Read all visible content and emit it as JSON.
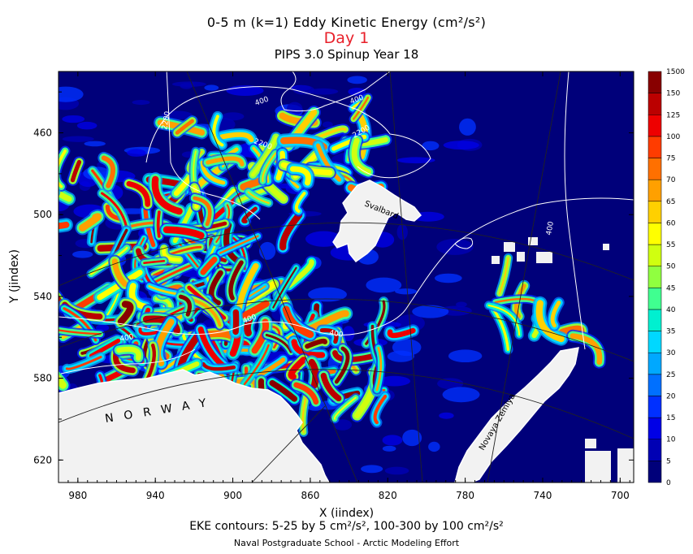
{
  "chart_data": {
    "type": "heatmap",
    "title": "0-5 m (k=1) Eddy Kinetic Energy (cm²/s²)",
    "subtitle": "Day 1",
    "title2": "PIPS 3.0 Spinup Year 18",
    "xlabel": "X (iindex)",
    "ylabel": "Y (jindex)",
    "footer": "EKE contours: 5-25 by 5 cm²/s², 100-300 by 100 cm²/s²",
    "credit": "Naval Postgraduate School - Arctic Modeling Effort",
    "x_ticks": [
      980,
      940,
      900,
      860,
      820,
      780,
      740,
      700
    ],
    "y_ticks": [
      460,
      500,
      540,
      580,
      620
    ],
    "xlim": [
      990,
      693
    ],
    "ylim": [
      430,
      631
    ],
    "colorbar": {
      "labels": [
        "0",
        "5",
        "10",
        "15",
        "20",
        "25",
        "30",
        "35",
        "40",
        "45",
        "50",
        "55",
        "60",
        "65",
        "70",
        "75",
        "100",
        "125",
        "150",
        "1500"
      ],
      "colors": [
        "#00007a",
        "#0000b4",
        "#0000e6",
        "#0030ff",
        "#0070ff",
        "#00a8ff",
        "#00d8ff",
        "#00f0d0",
        "#40ff90",
        "#90ff40",
        "#d0ff10",
        "#ffff00",
        "#ffd000",
        "#ffa000",
        "#ff7000",
        "#ff3c00",
        "#ee0000",
        "#bb0000",
        "#880000"
      ]
    },
    "land_labels": [
      "Svalbard",
      "NORWAY",
      "Novaya Zemlya"
    ],
    "depth_contour_labels": [
      "2200",
      "2200",
      "2200",
      "400",
      "400",
      "400",
      "400",
      "400",
      "400"
    ]
  },
  "icons": [
    "land-mask",
    "bathymetry-contours",
    "grid-lines"
  ]
}
